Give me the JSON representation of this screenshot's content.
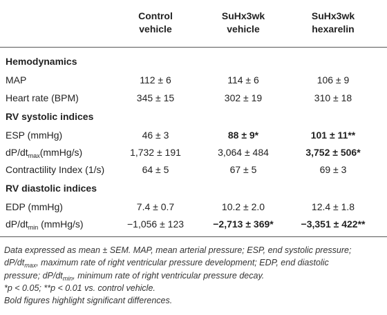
{
  "table": {
    "columns": [
      [
        "Control",
        "vehicle"
      ],
      [
        "SuHx3wk",
        "vehicle"
      ],
      [
        "SuHx3wk",
        "hexarelin"
      ]
    ],
    "rows": [
      {
        "section": "Hemodynamics"
      },
      {
        "label": [
          {
            "text": "MAP"
          }
        ],
        "cells": [
          {
            "text": "112 ± 6"
          },
          {
            "text": "114 ± 6"
          },
          {
            "text": "106 ± 9"
          }
        ]
      },
      {
        "label": [
          {
            "text": "Heart rate (BPM)"
          }
        ],
        "cells": [
          {
            "text": "345 ± 15"
          },
          {
            "text": "302 ± 19"
          },
          {
            "text": "310 ± 18"
          }
        ]
      },
      {
        "section": "RV systolic indices"
      },
      {
        "label": [
          {
            "text": "ESP (mmHg)"
          }
        ],
        "cells": [
          {
            "text": "46 ± 3"
          },
          {
            "text": "88 ± 9*",
            "bold": true
          },
          {
            "text": "101 ± 11**",
            "bold": true
          }
        ]
      },
      {
        "label": [
          {
            "text": "dP/dt"
          },
          {
            "text": "max",
            "sub": true
          },
          {
            "text": "(mmHg/s)"
          }
        ],
        "cells": [
          {
            "text": "1,732 ± 191"
          },
          {
            "text": "3,064 ± 484"
          },
          {
            "text": "3,752 ± 506*",
            "bold": true
          }
        ]
      },
      {
        "label": [
          {
            "text": "Contractility Index (1/s)"
          }
        ],
        "cells": [
          {
            "text": "64 ± 5"
          },
          {
            "text": "67 ± 5"
          },
          {
            "text": "69 ± 3"
          }
        ]
      },
      {
        "section": "RV diastolic indices"
      },
      {
        "label": [
          {
            "text": "EDP (mmHg)"
          }
        ],
        "cells": [
          {
            "text": "7.4 ± 0.7"
          },
          {
            "text": "10.2 ± 2.0"
          },
          {
            "text": "12.4 ± 1.8"
          }
        ]
      },
      {
        "label": [
          {
            "text": "dP/dt"
          },
          {
            "text": "min",
            "sub": true
          },
          {
            "text": " (mmHg/s)"
          }
        ],
        "cells": [
          {
            "text": "−1,056 ± 123"
          },
          {
            "text": "−2,713 ± 369*",
            "bold": true
          },
          {
            "text": "−3,351 ± 422**",
            "bold": true
          }
        ]
      }
    ]
  },
  "footnote": [
    [
      {
        "text": "Data expressed as mean ± SEM. MAP, mean arterial pressure; ESP, end systolic pressure;"
      }
    ],
    [
      {
        "text": "dP/dt"
      },
      {
        "text": "max",
        "sub": true
      },
      {
        "text": ", maximum rate of right ventricular pressure development; EDP, end diastolic"
      }
    ],
    [
      {
        "text": "pressure; dP/dt"
      },
      {
        "text": "min",
        "sub": true
      },
      {
        "text": ", minimum rate of right ventricular pressure decay."
      }
    ],
    [
      {
        "text": "*p < 0.05; **p < 0.01 vs. control vehicle."
      }
    ],
    [
      {
        "text": "Bold figures highlight significant differences."
      }
    ]
  ]
}
